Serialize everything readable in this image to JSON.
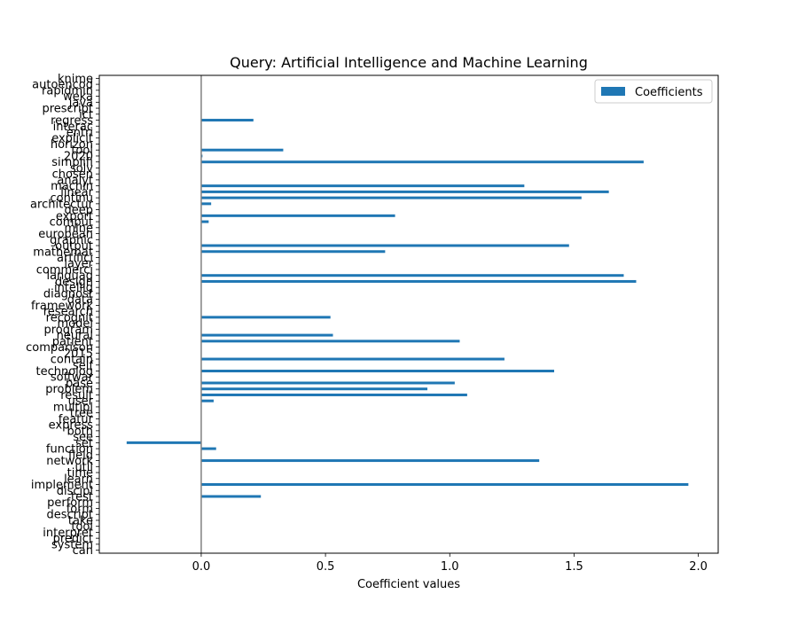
{
  "chart_data": {
    "type": "bar",
    "orientation": "horizontal",
    "title": "Query: Artificial Intelligence and Machine Learning",
    "xlabel": "Coefficient values",
    "ylabel": "",
    "xlim": [
      -0.41,
      2.08
    ],
    "xticks": [
      "0.0",
      "0.5",
      "1.0",
      "1.5",
      "2.0"
    ],
    "xtick_values": [
      0.0,
      0.5,
      1.0,
      1.5,
      2.0
    ],
    "grid": false,
    "legend_position": "top-right",
    "bar_color": "#1f77b4",
    "zero_line_color": "#808080",
    "series": [
      {
        "name": "Coefficients",
        "categories": [
          "can",
          "system",
          "predict",
          "interpret",
          "tool",
          "take",
          "descript",
          "form",
          "perform",
          "test",
          "discipl",
          "implement",
          "learn",
          "time",
          "util",
          "network",
          "field",
          "function",
          "set",
          "see",
          "both",
          "express",
          "featur",
          "tree",
          "multipl",
          "user",
          "result",
          "problem",
          "base",
          "softwar",
          "technolog",
          "self",
          "contain",
          "2015",
          "comparison",
          "patient",
          "neural",
          "program",
          "model",
          "recognit",
          "research",
          "framework",
          "data",
          "diagnost",
          "intellig",
          "design",
          "languag",
          "commerci",
          "layer",
          "artifici",
          "mathemat",
          "output",
          "graphic",
          "european",
          "mine",
          "comput",
          "export",
          "deep",
          "architectur",
          "continu",
          "linear",
          "machin",
          "analyt",
          "chosen",
          "solv",
          "simplifi",
          "2020",
          "tool",
          "horizon",
          "explicit",
          "entri",
          "interac",
          "regress",
          "ict",
          "prescript",
          "java",
          "weka",
          "rapidmin",
          "autoencod",
          "knime"
        ],
        "values": [
          0,
          0,
          0,
          0,
          0,
          0,
          0,
          0,
          0,
          0.24,
          0,
          1.96,
          0,
          0,
          0,
          1.36,
          0,
          0.06,
          -0.3,
          0,
          0,
          0,
          0,
          0,
          0,
          0.05,
          1.07,
          0.91,
          1.02,
          0,
          1.42,
          0,
          1.22,
          0,
          0,
          1.04,
          0.53,
          0,
          0,
          0.52,
          0,
          0,
          0,
          0,
          0,
          1.75,
          1.7,
          0,
          0,
          0,
          0.74,
          1.48,
          0,
          0,
          0,
          0.03,
          0.78,
          0,
          0.04,
          1.53,
          1.64,
          1.3,
          0,
          0,
          0,
          1.78,
          0.005,
          0.33,
          0,
          0,
          0,
          0,
          0.21,
          0,
          0,
          0,
          0,
          0,
          0,
          0
        ]
      }
    ]
  }
}
